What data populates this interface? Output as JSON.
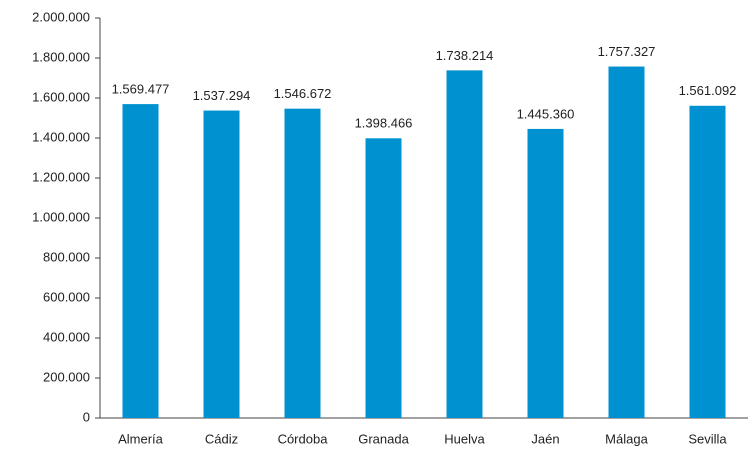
{
  "chart_data": {
    "type": "bar",
    "categories": [
      "Almería",
      "Cádiz",
      "Córdoba",
      "Granada",
      "Huelva",
      "Jaén",
      "Málaga",
      "Sevilla"
    ],
    "values": [
      1569477,
      1537294,
      1546672,
      1398466,
      1738214,
      1445360,
      1757327,
      1561092
    ],
    "value_labels": [
      "1.569.477",
      "1.537.294",
      "1.546.672",
      "1.398.466",
      "1.738.214",
      "1.445.360",
      "1.757.327",
      "1.561.092"
    ],
    "color": "#0091d0",
    "ylim": [
      0,
      2000000
    ],
    "yticks": [
      0,
      {
        "value": 200000,
        "label": "200.000"
      },
      {
        "value": 400000,
        "label": "400.000"
      },
      {
        "value": 600000,
        "label": "600.000"
      },
      {
        "value": 800000,
        "label": "800.000"
      },
      {
        "value": 1000000,
        "label": "1.000.000"
      },
      {
        "value": 1200000,
        "label": "1.200.000"
      },
      {
        "value": 1400000,
        "label": "1.400.000"
      },
      {
        "value": 1600000,
        "label": "1.600.000"
      },
      {
        "value": 1800000,
        "label": "1.800.000"
      },
      {
        "value": 2000000,
        "label": "2.000.000"
      }
    ],
    "grid": false
  }
}
